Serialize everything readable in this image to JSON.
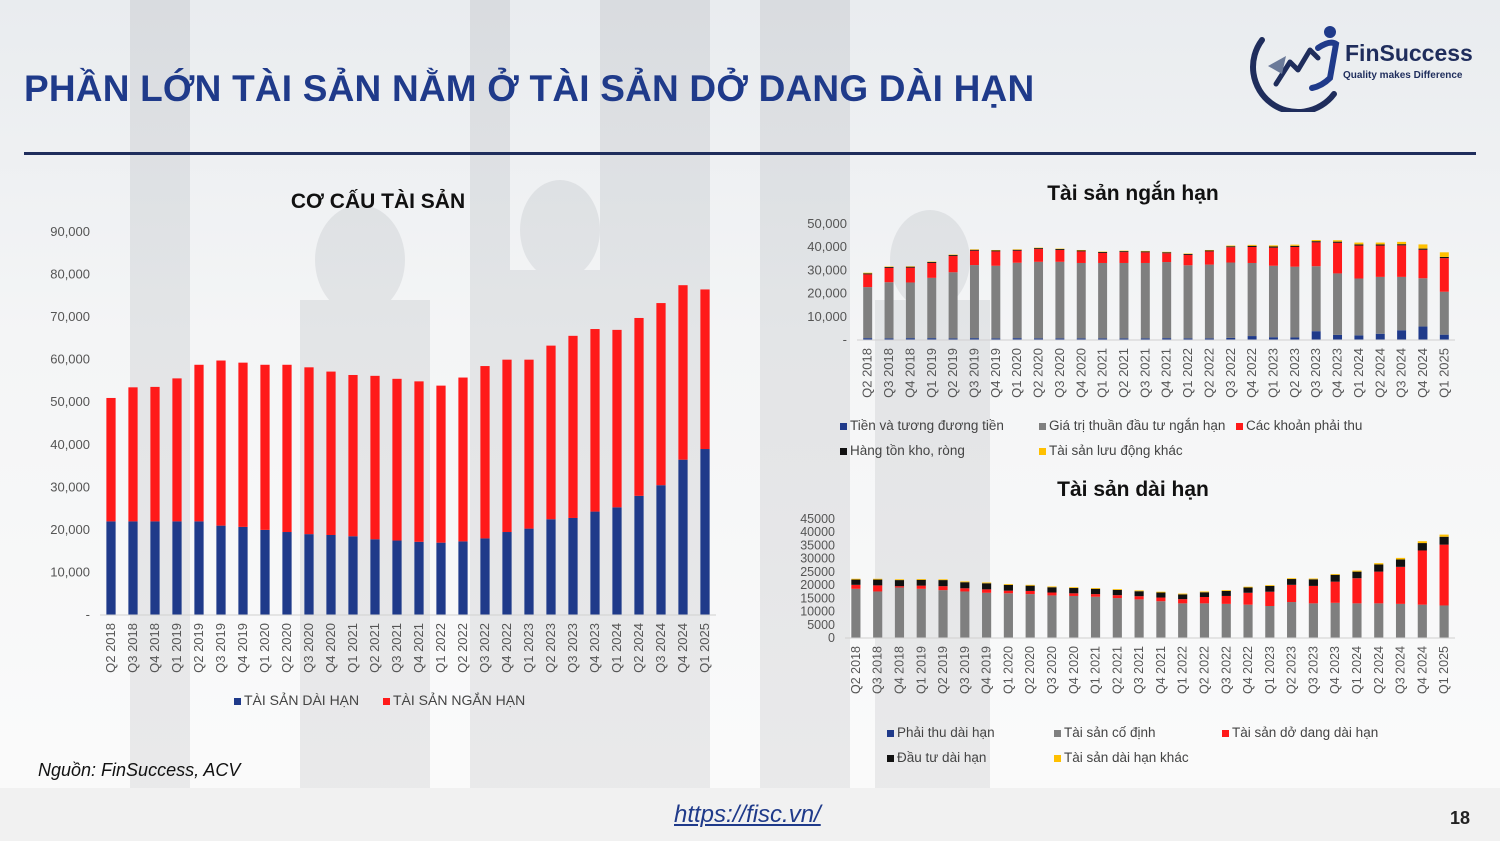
{
  "slide": {
    "title": "PHẦN LỚN TÀI SẢN NẰM Ở TÀI SẢN DỞ DANG DÀI HẠN",
    "source": "Nguồn: FinSuccess, ACV",
    "url": "https://fisc.vn/",
    "page_number": "18"
  },
  "logo": {
    "name": "FinSuccess",
    "tagline": "Quality makes Difference",
    "icon": "finsuccess-logo-icon"
  },
  "colors": {
    "navy": "#1f3a8a",
    "red": "#ff1a1a",
    "gray": "#7f7f7f",
    "black": "#111111",
    "yellow": "#ffc000"
  },
  "chart_data": [
    {
      "id": "total",
      "type": "bar",
      "stacked": true,
      "title": "CƠ CẤU TÀI SẢN",
      "categories": [
        "Q2 2018",
        "Q3 2018",
        "Q4 2018",
        "Q1 2019",
        "Q2 2019",
        "Q3 2019",
        "Q4 2019",
        "Q1 2020",
        "Q2 2020",
        "Q3 2020",
        "Q4 2020",
        "Q1 2021",
        "Q2 2021",
        "Q3 2021",
        "Q4 2021",
        "Q1 2022",
        "Q2 2022",
        "Q3 2022",
        "Q4 2022",
        "Q1 2023",
        "Q2 2023",
        "Q3 2023",
        "Q4 2023",
        "Q1 2024",
        "Q2 2024",
        "Q3 2024",
        "Q4 2024",
        "Q1 2025"
      ],
      "ylim": [
        0,
        90000
      ],
      "yticks": [
        "-",
        "10,000",
        "20,000",
        "30,000",
        "40,000",
        "50,000",
        "60,000",
        "70,000",
        "80,000",
        "90,000"
      ],
      "legend_position": "bottom",
      "series": [
        {
          "name": "TÀI SẢN DÀI HẠN",
          "color": "#1f3a8a",
          "values": [
            22000,
            22000,
            22000,
            22000,
            22000,
            21000,
            20700,
            20000,
            19500,
            19000,
            18800,
            18500,
            17800,
            17500,
            17200,
            17000,
            17300,
            18000,
            19500,
            20300,
            22500,
            22800,
            24300,
            25300,
            28000,
            30500,
            36500,
            39000
          ]
        },
        {
          "name": "TÀI SẢN NGẮN HẠN",
          "color": "#ff1a1a",
          "values": [
            29000,
            31500,
            31600,
            33600,
            36800,
            38800,
            38600,
            38800,
            39300,
            39200,
            38400,
            37900,
            38400,
            38000,
            37700,
            36900,
            38500,
            40500,
            40500,
            39700,
            40800,
            42800,
            42900,
            41700,
            41800,
            42800,
            41000,
            37500
          ]
        }
      ]
    },
    {
      "id": "short_term",
      "type": "bar",
      "stacked": true,
      "title": "Tài sản ngắn hạn",
      "categories": [
        "Q2 2018",
        "Q3 2018",
        "Q4 2018",
        "Q1 2019",
        "Q2 2019",
        "Q3 2019",
        "Q4 2019",
        "Q1 2020",
        "Q2 2020",
        "Q3 2020",
        "Q4 2020",
        "Q1 2021",
        "Q2 2021",
        "Q3 2021",
        "Q4 2021",
        "Q1 2022",
        "Q2 2022",
        "Q3 2022",
        "Q4 2022",
        "Q1 2023",
        "Q2 2023",
        "Q3 2023",
        "Q4 2023",
        "Q1 2024",
        "Q2 2024",
        "Q3 2024",
        "Q4 2024",
        "Q1 2025"
      ],
      "ylim": [
        0,
        50000
      ],
      "yticks": [
        "-",
        "10,000",
        "20,000",
        "30,000",
        "40,000",
        "50,000"
      ],
      "legend_position": "bottom",
      "series": [
        {
          "name": "Tiền và tương đương tiền",
          "color": "#1f3a8a",
          "values": [
            800,
            700,
            800,
            800,
            700,
            800,
            700,
            800,
            700,
            700,
            700,
            700,
            700,
            700,
            800,
            700,
            700,
            900,
            1700,
            1200,
            1100,
            3800,
            2200,
            2000,
            2700,
            4200,
            5800,
            2300
          ]
        },
        {
          "name": "Giá trị thuần đầu tư ngắn hạn",
          "color": "#7f7f7f",
          "values": [
            22000,
            24200,
            24000,
            26000,
            28500,
            31500,
            31300,
            32500,
            33000,
            33000,
            32500,
            32500,
            32500,
            32500,
            32800,
            31500,
            31800,
            32500,
            31500,
            30800,
            30500,
            28000,
            26500,
            24500,
            24500,
            23000,
            20800,
            18500
          ]
        },
        {
          "name": "Các khoản phải thu",
          "color": "#ff1a1a",
          "values": [
            5500,
            6200,
            6400,
            6400,
            7000,
            6200,
            6200,
            5200,
            5500,
            5100,
            5000,
            4300,
            4700,
            4600,
            3800,
            4500,
            5700,
            6600,
            6900,
            7800,
            8500,
            10300,
            13200,
            14200,
            13500,
            13600,
            12300,
            14500
          ]
        },
        {
          "name": "Hàng tồn kho, ròng",
          "color": "#111111",
          "values": [
            400,
            400,
            400,
            400,
            400,
            400,
            400,
            400,
            400,
            400,
            400,
            400,
            400,
            400,
            400,
            400,
            400,
            400,
            500,
            500,
            500,
            500,
            500,
            500,
            500,
            500,
            500,
            500
          ]
        },
        {
          "name": "Tài sản lưu động khác",
          "color": "#ffc000",
          "values": [
            300,
            200,
            200,
            200,
            200,
            200,
            200,
            200,
            200,
            200,
            200,
            200,
            200,
            200,
            200,
            200,
            200,
            300,
            400,
            500,
            500,
            500,
            600,
            800,
            800,
            1000,
            1800,
            2000
          ]
        }
      ]
    },
    {
      "id": "long_term",
      "type": "bar",
      "stacked": true,
      "title": "Tài sản dài hạn",
      "categories": [
        "Q2 2018",
        "Q3 2018",
        "Q4 2018",
        "Q1 2019",
        "Q2 2019",
        "Q3 2019",
        "Q4 2019",
        "Q1 2020",
        "Q2 2020",
        "Q3 2020",
        "Q4 2020",
        "Q1 2021",
        "Q2 2021",
        "Q3 2021",
        "Q4 2021",
        "Q1 2022",
        "Q2 2022",
        "Q3 2022",
        "Q4 2022",
        "Q1 2023",
        "Q2 2023",
        "Q3 2023",
        "Q4 2023",
        "Q1 2024",
        "Q2 2024",
        "Q3 2024",
        "Q4 2024",
        "Q1 2025"
      ],
      "ylim": [
        0,
        45000
      ],
      "yticks": [
        "0",
        "5000",
        "10000",
        "15000",
        "20000",
        "25000",
        "30000",
        "35000",
        "40000",
        "45000"
      ],
      "legend_position": "bottom",
      "series": [
        {
          "name": "Phải thu dài hạn",
          "color": "#1f3a8a",
          "values": [
            100,
            100,
            100,
            100,
            100,
            100,
            100,
            100,
            100,
            100,
            100,
            100,
            100,
            100,
            100,
            100,
            100,
            100,
            100,
            100,
            100,
            100,
            100,
            100,
            100,
            100,
            100,
            100
          ]
        },
        {
          "name": "Tài sản cố định",
          "color": "#7f7f7f",
          "values": [
            18500,
            17500,
            19000,
            18500,
            18000,
            17500,
            17000,
            16800,
            16500,
            16000,
            15800,
            15500,
            15000,
            14500,
            13800,
            13000,
            13000,
            12800,
            12500,
            12000,
            13500,
            13000,
            13200,
            13000,
            13000,
            12800,
            12500,
            12200
          ]
        },
        {
          "name": "Tài sản dở dang dài hạn",
          "color": "#ff1a1a",
          "values": [
            1500,
            2300,
            500,
            1200,
            1500,
            1200,
            1300,
            1000,
            1200,
            1100,
            1000,
            1000,
            1100,
            1200,
            1400,
            1600,
            2400,
            3000,
            4500,
            5400,
            6500,
            6600,
            8000,
            9500,
            12000,
            14000,
            20500,
            23000
          ]
        },
        {
          "name": "Đầu tư dài hạn",
          "color": "#111111",
          "values": [
            2000,
            2200,
            2300,
            2200,
            2300,
            2300,
            2300,
            2200,
            2000,
            2000,
            2000,
            2000,
            2000,
            1900,
            1900,
            1800,
            1800,
            1900,
            2000,
            2200,
            2200,
            2500,
            2600,
            2500,
            2700,
            2800,
            2800,
            3000
          ]
        },
        {
          "name": "Tài sản dài hạn khác",
          "color": "#ffc000",
          "values": [
            300,
            300,
            300,
            300,
            300,
            300,
            300,
            300,
            300,
            300,
            300,
            300,
            300,
            300,
            300,
            300,
            300,
            300,
            300,
            300,
            300,
            300,
            300,
            400,
            500,
            600,
            700,
            800
          ]
        }
      ]
    }
  ]
}
